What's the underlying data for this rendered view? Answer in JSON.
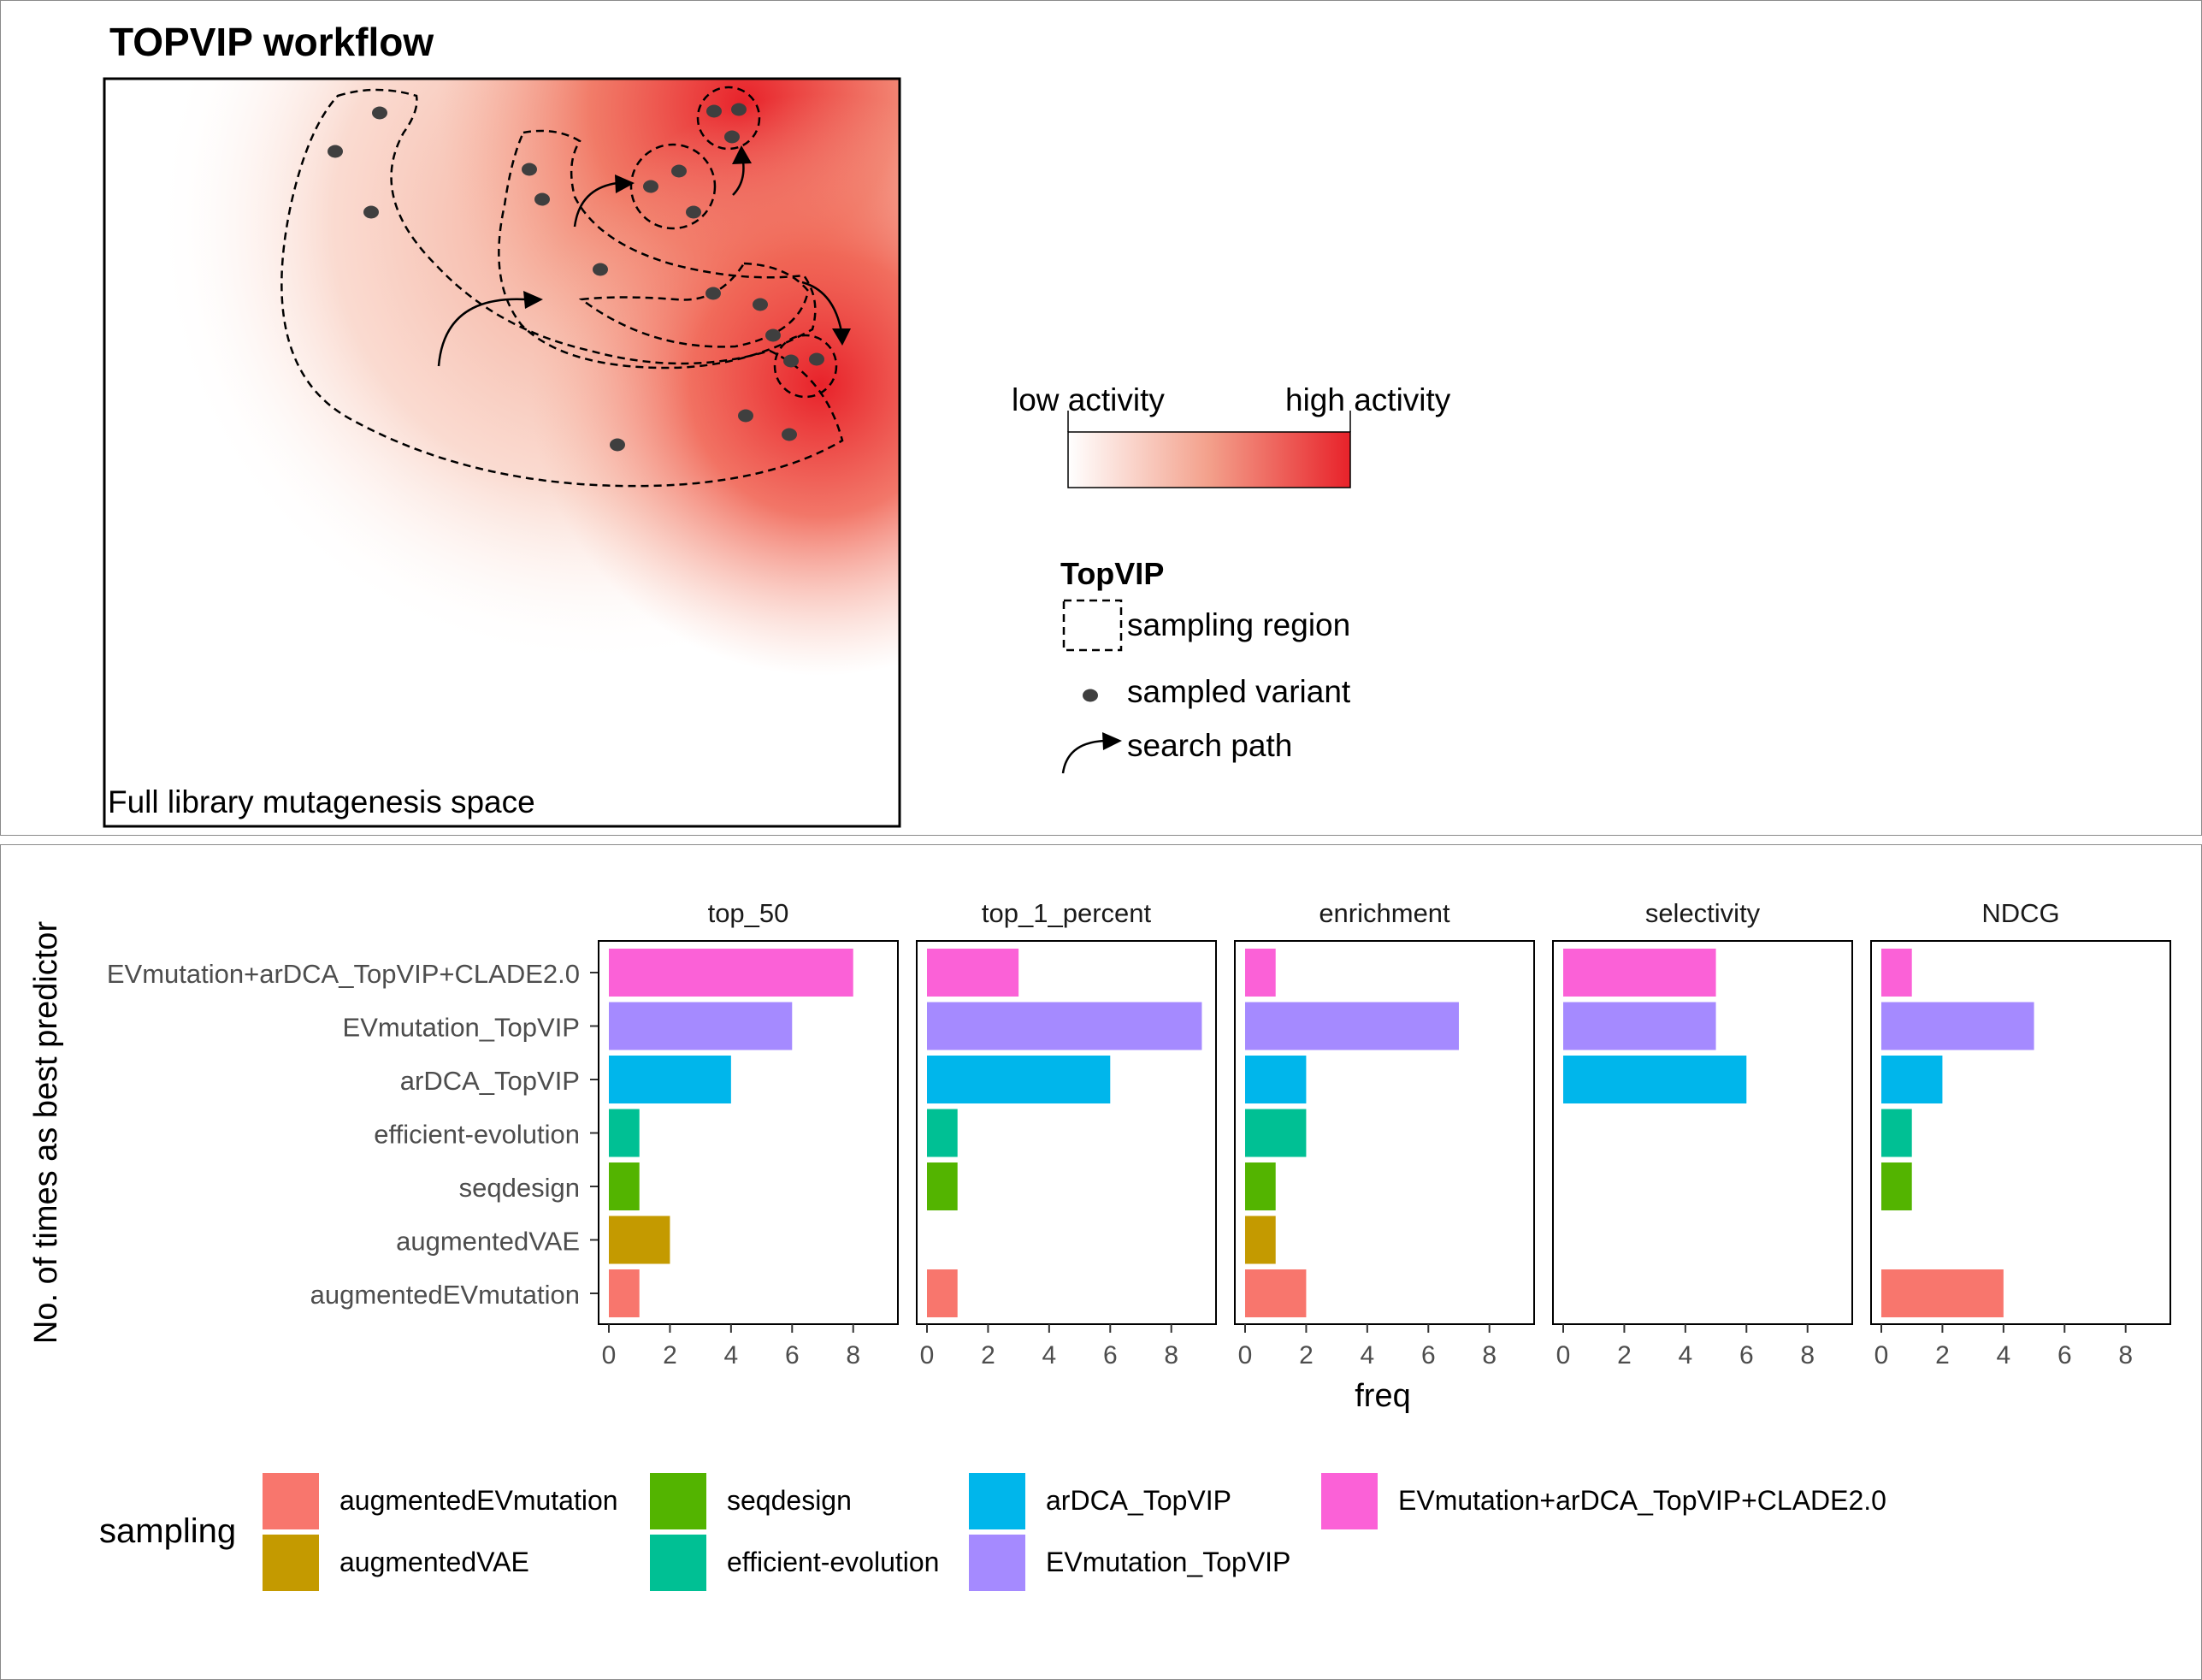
{
  "workflow": {
    "title": "TOPVIP workflow",
    "space_label": "Full library mutagenesis space",
    "activity_scale": {
      "low_label": "low activity",
      "high_label": "high activity",
      "low_color": "#ffffff",
      "high_color": "#e8222a"
    },
    "legend": {
      "title": "TopVIP",
      "items": [
        {
          "label": "sampling region",
          "icon": "dashed-square-icon"
        },
        {
          "label": "sampled variant",
          "icon": "dot-icon"
        },
        {
          "label": "search path",
          "icon": "curved-arrow-icon"
        }
      ]
    }
  },
  "chart_data": {
    "type": "bar",
    "orientation": "horizontal",
    "ylabel": "No. of times as best predictor",
    "xlabel": "freq",
    "xlim": [
      0,
      9.8
    ],
    "xticks": [
      0,
      2,
      4,
      6,
      8
    ],
    "grid": false,
    "categories": [
      "EVmutation+arDCA_TopVIP+CLADE2.0",
      "EVmutation_TopVIP",
      "arDCA_TopVIP",
      "efficient-evolution",
      "seqdesign",
      "augmentedVAE",
      "augmentedEVmutation"
    ],
    "colors": {
      "augmentedEVmutation": "#F8766D",
      "augmentedVAE": "#C49A00",
      "seqdesign": "#53B400",
      "efficient-evolution": "#00C094",
      "arDCA_TopVIP": "#00B6EB",
      "EVmutation_TopVIP": "#A58AFF",
      "EVmutation+arDCA_TopVIP+CLADE2.0": "#FB61D7"
    },
    "facets": [
      {
        "name": "top_50",
        "values": [
          8,
          6,
          4,
          1,
          1,
          2,
          1
        ]
      },
      {
        "name": "top_1_percent",
        "values": [
          3,
          9,
          6,
          1,
          1,
          0,
          1
        ]
      },
      {
        "name": "enrichment",
        "values": [
          1,
          7,
          2,
          2,
          1,
          1,
          2
        ]
      },
      {
        "name": "selectivity",
        "values": [
          5,
          5,
          6,
          0,
          0,
          0,
          0
        ]
      },
      {
        "name": "NDCG",
        "values": [
          1,
          5,
          2,
          1,
          1,
          0,
          4
        ]
      }
    ],
    "legend": {
      "title": "sampling",
      "position": "bottom",
      "items": [
        "augmentedEVmutation",
        "augmentedVAE",
        "seqdesign",
        "efficient-evolution",
        "arDCA_TopVIP",
        "EVmutation_TopVIP",
        "EVmutation+arDCA_TopVIP+CLADE2.0"
      ]
    }
  }
}
